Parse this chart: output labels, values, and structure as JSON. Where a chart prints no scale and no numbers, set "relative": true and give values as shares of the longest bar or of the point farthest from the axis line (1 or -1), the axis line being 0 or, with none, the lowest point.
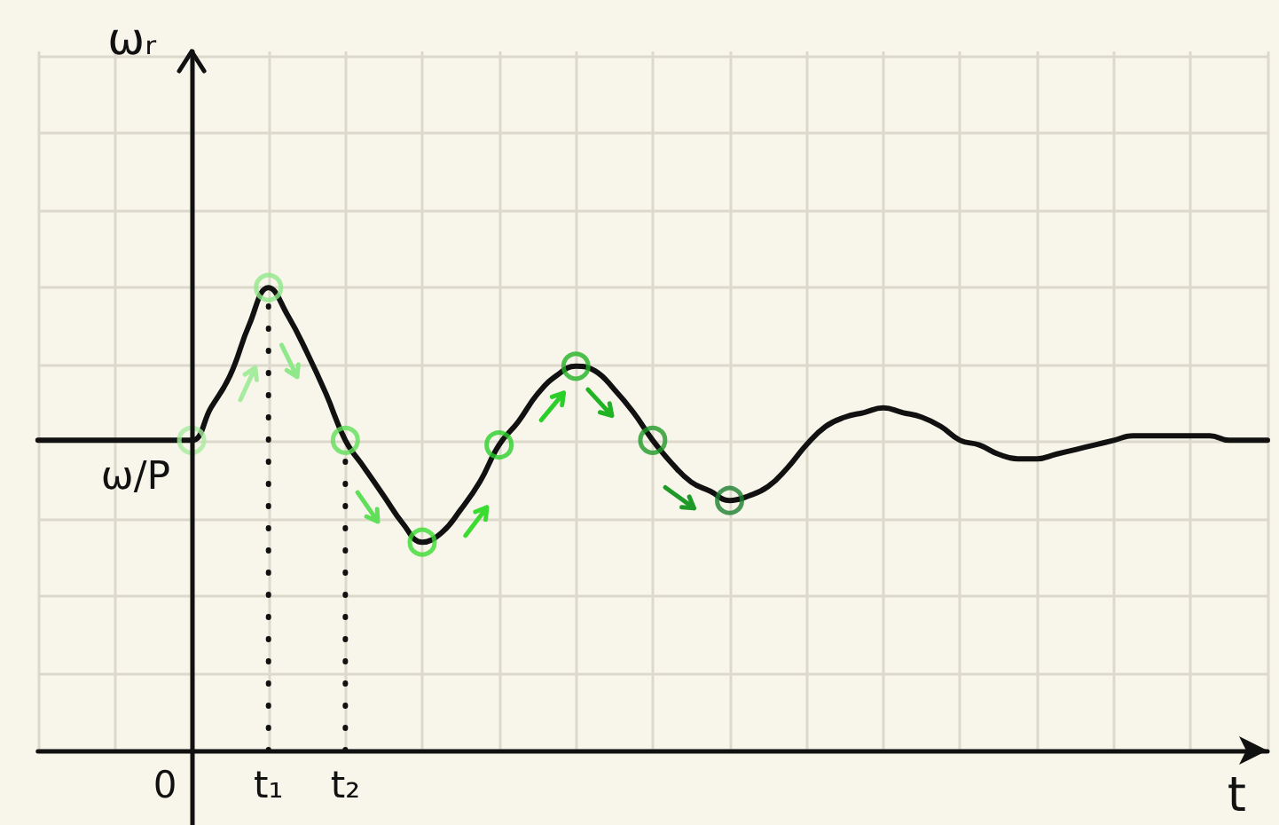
{
  "chart_data": {
    "type": "line",
    "relative": true,
    "xlabel": "t",
    "grid": true,
    "categories": [
      null,
      null,
      null,
      null,
      null,
      null,
      null,
      null,
      "0",
      null,
      null,
      null,
      "t₁",
      null,
      null,
      null,
      "t₂",
      null,
      null,
      null,
      null,
      null,
      null,
      null,
      null,
      null,
      null,
      null,
      null,
      null,
      null,
      null,
      null,
      null,
      null,
      null,
      null,
      null,
      null,
      null,
      null,
      null,
      null,
      null,
      null,
      null,
      null,
      null,
      null,
      null,
      null,
      null,
      null,
      null,
      null,
      null,
      null,
      null,
      null,
      null,
      null,
      null,
      null,
      null,
      null
    ],
    "series": [
      {
        "type": "line",
        "color": "#111111",
        "marker": "none",
        "values": [
          0.67,
          0.67,
          0.67,
          0.67,
          0.67,
          0.67,
          0.67,
          0.67,
          0.67,
          0.74,
          0.81,
          0.92,
          1,
          0.94,
          0.86,
          0.77,
          0.67,
          0.61,
          0.55,
          0.49,
          0.45,
          0.47,
          0.52,
          0.58,
          0.66,
          0.71,
          0.77,
          0.81,
          0.83,
          0.82,
          0.78,
          0.73,
          0.67,
          0.62,
          0.58,
          0.56,
          0.54,
          0.55,
          0.57,
          0.61,
          0.66,
          0.7,
          0.72,
          0.73,
          0.74,
          0.73,
          0.72,
          0.7,
          0.67,
          0.66,
          0.64,
          0.63,
          0.63,
          0.64,
          0.65,
          0.66,
          0.67,
          0.68,
          0.68,
          0.68,
          0.68,
          0.68,
          0.67,
          0.67,
          0.67
        ]
      },
      {
        "type": "scatter",
        "marker": "circle",
        "values": [
          null,
          null,
          null,
          null,
          null,
          null,
          null,
          null,
          0.67,
          null,
          null,
          null,
          1,
          null,
          null,
          null,
          0.67,
          null,
          null,
          null,
          0.45,
          null,
          null,
          null,
          0.66,
          null,
          null,
          null,
          0.83,
          null,
          null,
          null,
          0.67,
          null,
          null,
          null,
          0.54,
          null,
          null,
          null,
          null,
          null,
          null,
          null,
          null,
          null,
          null,
          null,
          null,
          null,
          null,
          null,
          null,
          null,
          null,
          null,
          null,
          null,
          null,
          null,
          null,
          null,
          null,
          null,
          null
        ],
        "colors": [
          null,
          null,
          null,
          null,
          null,
          null,
          null,
          null,
          "#a6ec9e",
          null,
          null,
          null,
          "#8fe889",
          null,
          null,
          null,
          "#5fe058",
          null,
          null,
          null,
          "#3bdc30",
          null,
          null,
          null,
          "#2ccf2a",
          null,
          null,
          null,
          "#22b324",
          null,
          null,
          null,
          "#1f9a28",
          null,
          null,
          null,
          "#1b8030",
          null,
          null,
          null,
          null,
          null,
          null,
          null,
          null,
          null,
          null,
          null,
          null,
          null,
          null,
          null,
          null,
          null,
          null,
          null,
          null,
          null,
          null,
          null,
          null,
          null,
          null,
          null,
          null
        ]
      },
      {
        "type": "line",
        "color": "#111111",
        "marker": "none",
        "line_style": "dotted",
        "x": [
          "t₁",
          "t₁"
        ],
        "values": [
          0,
          1
        ]
      },
      {
        "type": "line",
        "color": "#111111",
        "marker": "none",
        "line_style": "dotted",
        "x": [
          "t₂",
          "t₂"
        ],
        "values": [
          0,
          0.67
        ]
      }
    ],
    "ref_lines": [
      {
        "axis": "x",
        "value": "0",
        "color": "#111111"
      }
    ],
    "annotations": [
      "ωᵣ",
      {
        "text": "ω/P",
        "y": 0.67
      }
    ]
  }
}
